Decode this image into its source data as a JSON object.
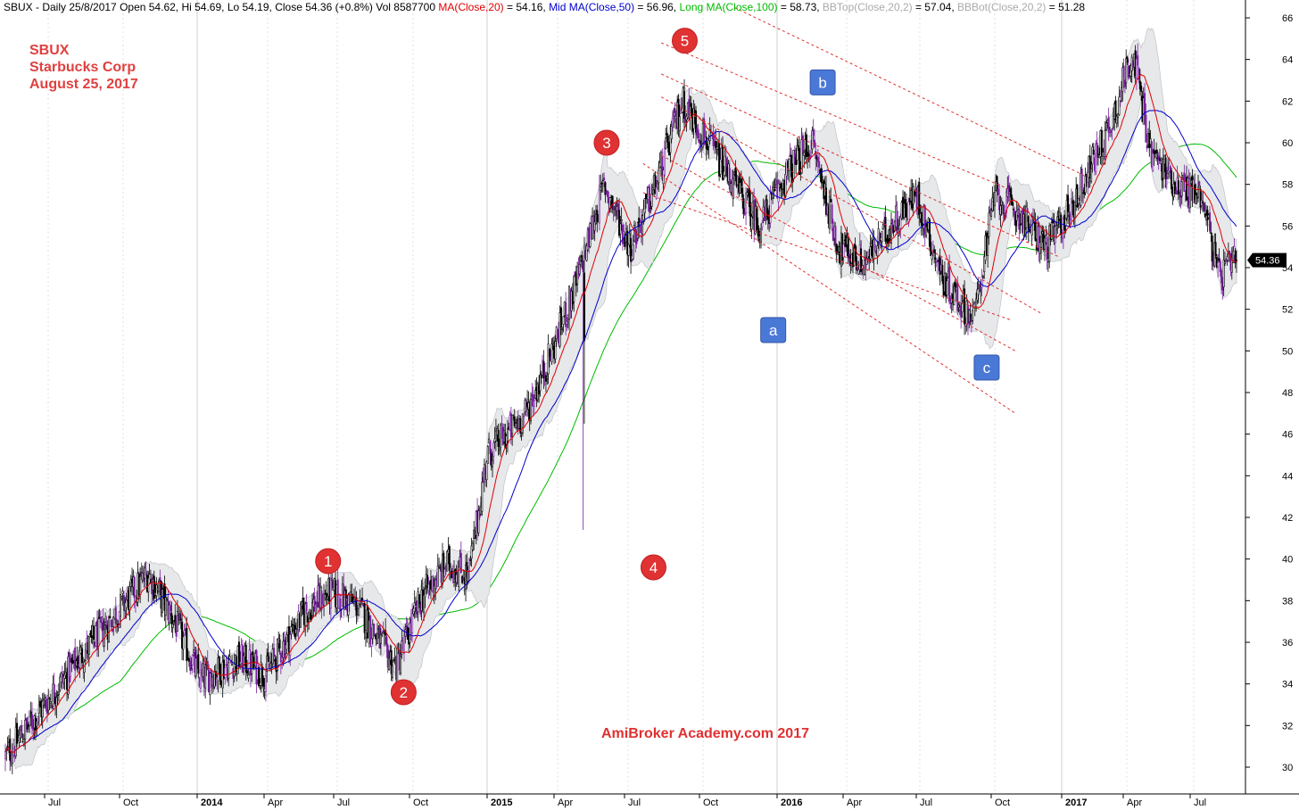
{
  "header": {
    "segments": [
      {
        "text": "SBUX - Daily 25/8/2017 Open 54.62, Hi 54.69, Lo 54.19, Close 54.36 (+0.8%) Vol 8587700 ",
        "color": "#000000"
      },
      {
        "text": "MA(Close,20)",
        "color": "#e00000"
      },
      {
        "text": " = 54.16, ",
        "color": "#000000"
      },
      {
        "text": "Mid MA(Close,50)",
        "color": "#0000cc"
      },
      {
        "text": " = 56.96, ",
        "color": "#000000"
      },
      {
        "text": "Long MA(Close,100)",
        "color": "#00bb00"
      },
      {
        "text": " = 58.73, ",
        "color": "#000000"
      },
      {
        "text": "BBTop(Close,20,2)",
        "color": "#aaaaaa"
      },
      {
        "text": " = 57.04, ",
        "color": "#000000"
      },
      {
        "text": "BBBot(Close,20,2)",
        "color": "#aaaaaa"
      },
      {
        "text": " = 51.28",
        "color": "#000000"
      }
    ]
  },
  "title_block": {
    "line1": "SBUX",
    "line2": "Starbucks Corp",
    "line3": "August 25, 2017"
  },
  "watermark": "AmiBroker Academy.com 2017",
  "last_price_label": "54.36",
  "colors": {
    "ma20": "#e00000",
    "ma50": "#0000cc",
    "ma100": "#00bb00",
    "band_fill": "#e6e8ea",
    "candle_outline": "#000000",
    "highlight": "#7a1fa2",
    "annotation_circle": "#e03232",
    "annotation_box": "#4a78d6",
    "channel": "#e03030"
  },
  "chart_data": {
    "type": "candlestick",
    "symbol": "SBUX",
    "x_labels": [
      "Jul",
      "Oct",
      "2014",
      "Apr",
      "Jul",
      "Oct",
      "2015",
      "Apr",
      "Jul",
      "Oct",
      "2016",
      "Apr",
      "Jul",
      "Oct",
      "2017",
      "Apr",
      "Jul"
    ],
    "y_ticks": [
      30,
      32,
      34,
      36,
      38,
      40,
      42,
      44,
      46,
      48,
      50,
      52,
      54,
      56,
      58,
      60,
      62,
      64,
      66
    ],
    "ylim": [
      29,
      66.5
    ],
    "price_path_approx": [
      {
        "t": 0.0,
        "v": 30.5
      },
      {
        "t": 1.5,
        "v": 33.0
      },
      {
        "t": 2.8,
        "v": 35.2
      },
      {
        "t": 4.0,
        "v": 37.0
      },
      {
        "t": 5.5,
        "v": 39.3
      },
      {
        "t": 6.5,
        "v": 37.0
      },
      {
        "t": 7.5,
        "v": 34.2
      },
      {
        "t": 9.0,
        "v": 35.2
      },
      {
        "t": 10.0,
        "v": 34.5
      },
      {
        "t": 11.5,
        "v": 37.5
      },
      {
        "t": 12.5,
        "v": 38.4
      },
      {
        "t": 13.5,
        "v": 37.8
      },
      {
        "t": 14.3,
        "v": 36.2
      },
      {
        "t": 15.0,
        "v": 34.8
      },
      {
        "t": 16.0,
        "v": 38.2
      },
      {
        "t": 17.0,
        "v": 39.8
      },
      {
        "t": 17.8,
        "v": 39.2
      },
      {
        "t": 18.5,
        "v": 45.0
      },
      {
        "t": 20.0,
        "v": 47.0
      },
      {
        "t": 21.0,
        "v": 50.0
      },
      {
        "t": 22.0,
        "v": 53.5
      },
      {
        "t": 23.0,
        "v": 58.0
      },
      {
        "t": 24.0,
        "v": 55.0
      },
      {
        "t": 25.0,
        "v": 58.0
      },
      {
        "t": 26.0,
        "v": 62.0
      },
      {
        "t": 27.0,
        "v": 60.0
      },
      {
        "t": 28.0,
        "v": 58.0
      },
      {
        "t": 29.0,
        "v": 56.0
      },
      {
        "t": 30.0,
        "v": 58.5
      },
      {
        "t": 31.0,
        "v": 60.0
      },
      {
        "t": 32.0,
        "v": 55.0
      },
      {
        "t": 33.0,
        "v": 54.2
      },
      {
        "t": 34.0,
        "v": 56.0
      },
      {
        "t": 35.0,
        "v": 57.5
      },
      {
        "t": 36.0,
        "v": 53.5
      },
      {
        "t": 37.2,
        "v": 51.5
      },
      {
        "t": 38.0,
        "v": 57.5
      },
      {
        "t": 39.0,
        "v": 56.5
      },
      {
        "t": 40.0,
        "v": 55.0
      },
      {
        "t": 41.0,
        "v": 57.0
      },
      {
        "t": 42.5,
        "v": 61.0
      },
      {
        "t": 43.3,
        "v": 64.5
      },
      {
        "t": 44.0,
        "v": 59.5
      },
      {
        "t": 45.0,
        "v": 58.0
      },
      {
        "t": 46.0,
        "v": 57.5
      },
      {
        "t": 46.6,
        "v": 53.5
      },
      {
        "t": 47.3,
        "v": 54.36
      }
    ],
    "drop_wick": {
      "t": 22.2,
      "v_low": 41.4
    },
    "last_close": 54.36,
    "indicators": [
      "MA(Close,20)",
      "Mid MA(Close,50)",
      "Long MA(Close,100)",
      "BBTop(Close,20,2)",
      "BBBot(Close,20,2)"
    ],
    "indicator_values": [
      54.16,
      56.96,
      58.73,
      57.04,
      51.28
    ],
    "annotations": [
      {
        "label": "1",
        "shape": "circle",
        "t": 12.4,
        "v": 39.9
      },
      {
        "label": "2",
        "shape": "circle",
        "t": 15.3,
        "v": 33.6
      },
      {
        "label": "3",
        "shape": "circle",
        "t": 23.1,
        "v": 60.0
      },
      {
        "label": "4",
        "shape": "circle",
        "t": 24.9,
        "v": 39.6
      },
      {
        "label": "5",
        "shape": "circle",
        "t": 26.1,
        "v": 64.9
      },
      {
        "label": "a",
        "shape": "box",
        "t": 29.5,
        "v": 51.0
      },
      {
        "label": "b",
        "shape": "box",
        "t": 31.4,
        "v": 62.9
      },
      {
        "label": "c",
        "shape": "box",
        "t": 37.7,
        "v": 49.2
      }
    ],
    "channel_lines": [
      {
        "t1": 25.2,
        "v1": 64.8,
        "t2": 38.5,
        "v2": 57.8
      },
      {
        "t1": 25.2,
        "v1": 63.3,
        "t2": 40.5,
        "v2": 54.5
      },
      {
        "t1": 25.2,
        "v1": 62.2,
        "t2": 39.8,
        "v2": 51.8
      },
      {
        "t1": 25.2,
        "v1": 59.4,
        "t2": 38.8,
        "v2": 50.0
      },
      {
        "t1": 24.5,
        "v1": 59.0,
        "t2": 38.8,
        "v2": 47.0
      },
      {
        "t1": 24.5,
        "v1": 57.6,
        "t2": 38.6,
        "v2": 51.5
      },
      {
        "t1": 28.0,
        "v1": 66.5,
        "t2": 41.5,
        "v2": 58.4
      }
    ]
  }
}
